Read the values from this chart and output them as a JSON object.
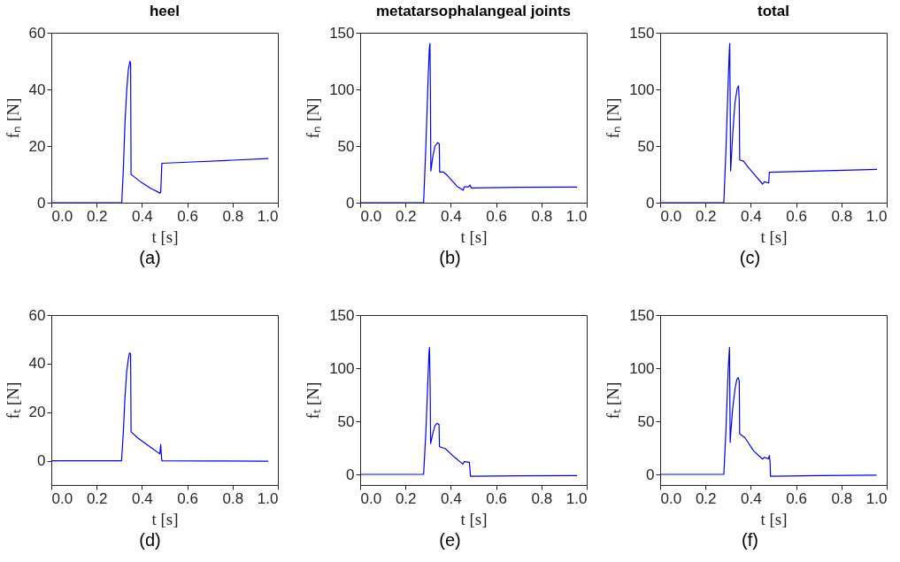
{
  "chart_data": [
    {
      "type": "line",
      "title": "heel",
      "xlabel": "t [s]",
      "ylabel": "fₙ [N]",
      "annotations": [
        "(a)"
      ],
      "xlim": [
        0,
        1
      ],
      "xticks": [
        {
          "value": 0,
          "label": "0.0"
        },
        {
          "value": 0.2,
          "label": "0.2"
        },
        {
          "value": 0.4,
          "label": "0.4"
        },
        {
          "value": 0.6,
          "label": "0.6"
        },
        {
          "value": 0.8,
          "label": "0.8"
        },
        {
          "value": 1,
          "label": "1.0"
        }
      ],
      "ylim": [
        0,
        60
      ],
      "yticks": [
        0,
        20,
        40,
        60
      ],
      "series": [
        {
          "color": "#0000ff",
          "x": [
            0,
            0.311,
            0.318,
            0.325,
            0.333,
            0.34,
            0.347,
            0.35,
            0.352,
            0.36,
            0.4,
            0.44,
            0.48,
            0.483,
            0.486,
            0.488,
            0.6,
            0.8,
            0.958
          ],
          "values": [
            0,
            0,
            12,
            28,
            40,
            47,
            50,
            49,
            10,
            9.5,
            7,
            5,
            3.4,
            3.8,
            10,
            13.9,
            14.3,
            15,
            15.6
          ]
        }
      ]
    },
    {
      "type": "line",
      "title": "metatarsophalangeal joints",
      "xlabel": "t [s]",
      "ylabel": "fₙ [N]",
      "annotations": [
        "(b)"
      ],
      "xlim": [
        0,
        1
      ],
      "xticks": [
        {
          "value": 0,
          "label": "0.0"
        },
        {
          "value": 0.2,
          "label": "0.2"
        },
        {
          "value": 0.4,
          "label": "0.4"
        },
        {
          "value": 0.6,
          "label": "0.6"
        },
        {
          "value": 0.8,
          "label": "0.8"
        },
        {
          "value": 1,
          "label": "1.0"
        }
      ],
      "ylim": [
        0,
        150
      ],
      "yticks": [
        0,
        50,
        100,
        150
      ],
      "series": [
        {
          "color": "#0000ff",
          "x": [
            0,
            0.28,
            0.29,
            0.3,
            0.305,
            0.308,
            0.31,
            0.312,
            0.32,
            0.33,
            0.342,
            0.349,
            0.351,
            0.368,
            0.385,
            0.407,
            0.43,
            0.455,
            0.459,
            0.478,
            0.485,
            0.49,
            0.7,
            0.957
          ],
          "values": [
            0,
            0,
            50,
            110,
            135,
            140.5,
            100,
            28,
            40,
            50,
            53,
            52,
            27,
            27,
            24,
            19,
            14,
            11,
            14,
            14,
            15.6,
            13,
            13.5,
            13.8
          ]
        }
      ]
    },
    {
      "type": "line",
      "title": "total",
      "xlabel": "t [s]",
      "ylabel": "fₙ [N]",
      "annotations": [
        "(c)"
      ],
      "xlim": [
        0,
        1
      ],
      "xticks": [
        {
          "value": 0,
          "label": "0.0"
        },
        {
          "value": 0.2,
          "label": "0.2"
        },
        {
          "value": 0.4,
          "label": "0.4"
        },
        {
          "value": 0.6,
          "label": "0.6"
        },
        {
          "value": 0.8,
          "label": "0.8"
        },
        {
          "value": 1,
          "label": "1.0"
        }
      ],
      "ylim": [
        0,
        150
      ],
      "yticks": [
        0,
        50,
        100,
        150
      ],
      "series": [
        {
          "color": "#0000ff",
          "x": [
            0,
            0.281,
            0.29,
            0.3,
            0.305,
            0.307,
            0.309,
            0.311,
            0.32,
            0.33,
            0.34,
            0.346,
            0.349,
            0.351,
            0.368,
            0.39,
            0.42,
            0.452,
            0.459,
            0.479,
            0.482,
            0.7,
            0.957
          ],
          "values": [
            0,
            0,
            45,
            105,
            133,
            140.5,
            90,
            28,
            60,
            88,
            101,
            103,
            90,
            37.7,
            36.6,
            31,
            24,
            16.4,
            18.4,
            17.4,
            26.8,
            28,
            29.4
          ]
        }
      ]
    },
    {
      "type": "line",
      "xlabel": "t [s]",
      "ylabel": "fₜ [N]",
      "annotations": [
        "(d)"
      ],
      "xlim": [
        0,
        1
      ],
      "xticks": [
        {
          "value": 0,
          "label": "0.0"
        },
        {
          "value": 0.2,
          "label": "0.2"
        },
        {
          "value": 0.4,
          "label": "0.4"
        },
        {
          "value": 0.6,
          "label": "0.6"
        },
        {
          "value": 0.8,
          "label": "0.8"
        },
        {
          "value": 1,
          "label": "1.0"
        }
      ],
      "ylim": [
        -10,
        60
      ],
      "yticks": [
        0,
        20,
        40,
        60
      ],
      "series": [
        {
          "color": "#0000ff",
          "x": [
            0,
            0.31,
            0.318,
            0.325,
            0.333,
            0.34,
            0.345,
            0.35,
            0.352,
            0.38,
            0.408,
            0.45,
            0.479,
            0.483,
            0.485,
            0.488,
            0.7,
            0.957
          ],
          "values": [
            0,
            0,
            12,
            26,
            37,
            42,
            44.4,
            44,
            11.9,
            9.5,
            7.6,
            4.8,
            2.8,
            6.7,
            3,
            0,
            -0.1,
            -0.2
          ]
        }
      ]
    },
    {
      "type": "line",
      "xlabel": "t [s]",
      "ylabel": "fₜ [N]",
      "annotations": [
        "(e)"
      ],
      "xlim": [
        0,
        1
      ],
      "xticks": [
        {
          "value": 0,
          "label": "0.0"
        },
        {
          "value": 0.2,
          "label": "0.2"
        },
        {
          "value": 0.4,
          "label": "0.4"
        },
        {
          "value": 0.6,
          "label": "0.6"
        },
        {
          "value": 0.8,
          "label": "0.8"
        },
        {
          "value": 1,
          "label": "1.0"
        }
      ],
      "ylim": [
        -10,
        150
      ],
      "yticks": [
        0,
        50,
        100,
        150
      ],
      "series": [
        {
          "color": "#0000ff",
          "x": [
            0,
            0.28,
            0.29,
            0.3,
            0.304,
            0.306,
            0.309,
            0.311,
            0.32,
            0.33,
            0.339,
            0.348,
            0.35,
            0.375,
            0.414,
            0.453,
            0.46,
            0.482,
            0.487,
            0.7,
            0.957
          ],
          "values": [
            0,
            0,
            40,
            95,
            115,
            119.6,
            80,
            29,
            38,
            46,
            48,
            47,
            26,
            24.4,
            16.6,
            9.7,
            12,
            11.3,
            -1.7,
            -1.4,
            -1.1
          ]
        }
      ]
    },
    {
      "type": "line",
      "xlabel": "t [s]",
      "ylabel": "fₜ [N]",
      "annotations": [
        "(f)"
      ],
      "xlim": [
        0,
        1
      ],
      "xticks": [
        {
          "value": 0,
          "label": "0.0"
        },
        {
          "value": 0.2,
          "label": "0.2"
        },
        {
          "value": 0.4,
          "label": "0.4"
        },
        {
          "value": 0.6,
          "label": "0.6"
        },
        {
          "value": 0.8,
          "label": "0.8"
        },
        {
          "value": 1,
          "label": "1.0"
        }
      ],
      "ylim": [
        -10,
        150
      ],
      "yticks": [
        0,
        50,
        100,
        150
      ],
      "series": [
        {
          "color": "#0000ff",
          "x": [
            0,
            0.281,
            0.29,
            0.3,
            0.306,
            0.309,
            0.312,
            0.32,
            0.33,
            0.338,
            0.344,
            0.349,
            0.351,
            0.374,
            0.413,
            0.452,
            0.46,
            0.478,
            0.482,
            0.485,
            0.487,
            0.7,
            0.955
          ],
          "values": [
            0,
            0,
            40,
            98,
            119.6,
            30,
            40,
            62,
            80,
            89,
            91.3,
            88,
            38.2,
            34.6,
            22,
            14.4,
            16,
            14.7,
            17.7,
            12,
            -1.7,
            -1.2,
            -0.8
          ]
        }
      ]
    }
  ]
}
